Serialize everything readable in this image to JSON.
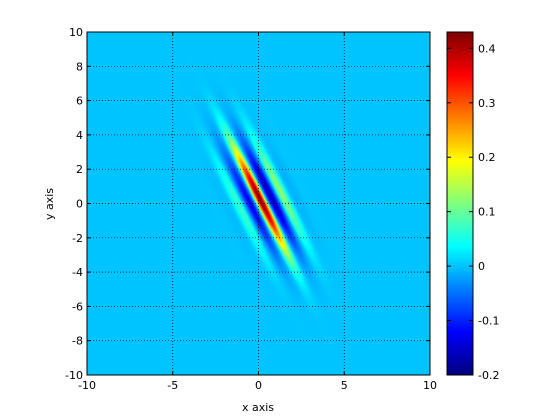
{
  "chart_data": {
    "type": "heatmap",
    "title": "",
    "xlabel": "x axis",
    "ylabel": "y axis",
    "xlim": [
      -10,
      10
    ],
    "ylim": [
      -10,
      10
    ],
    "x_ticks": [
      -10,
      -5,
      0,
      5,
      10
    ],
    "y_ticks": [
      -10,
      -8,
      -6,
      -4,
      -2,
      0,
      2,
      4,
      6,
      8,
      10
    ],
    "x_tick_labels": [
      "-10",
      "-5",
      "0",
      "5",
      "10"
    ],
    "y_tick_labels": [
      "-10",
      "-8",
      "-6",
      "-4",
      "-2",
      "0",
      "2",
      "4",
      "6",
      "8",
      "10"
    ],
    "grid": true,
    "colormap": "jet",
    "clim": [
      -0.2,
      0.43
    ],
    "colorbar_ticks": [
      -0.2,
      -0.1,
      0,
      0.1,
      0.2,
      0.3,
      0.4
    ],
    "colorbar_tick_labels": [
      "-0.2",
      "-0.1",
      "0",
      "0.1",
      "0.2",
      "0.3",
      "0.4"
    ],
    "field": {
      "description_of_shape": "Gabor-like oscillating pattern elongated along the y = -2x direction, centered near the origin",
      "center": [
        0.2,
        0.3
      ],
      "peak_value": 0.43,
      "peak_location": [
        -0.3,
        0.3
      ],
      "trough_value": -0.2,
      "trough_location": [
        0.6,
        1.0
      ],
      "background_value": 0.0
    }
  }
}
